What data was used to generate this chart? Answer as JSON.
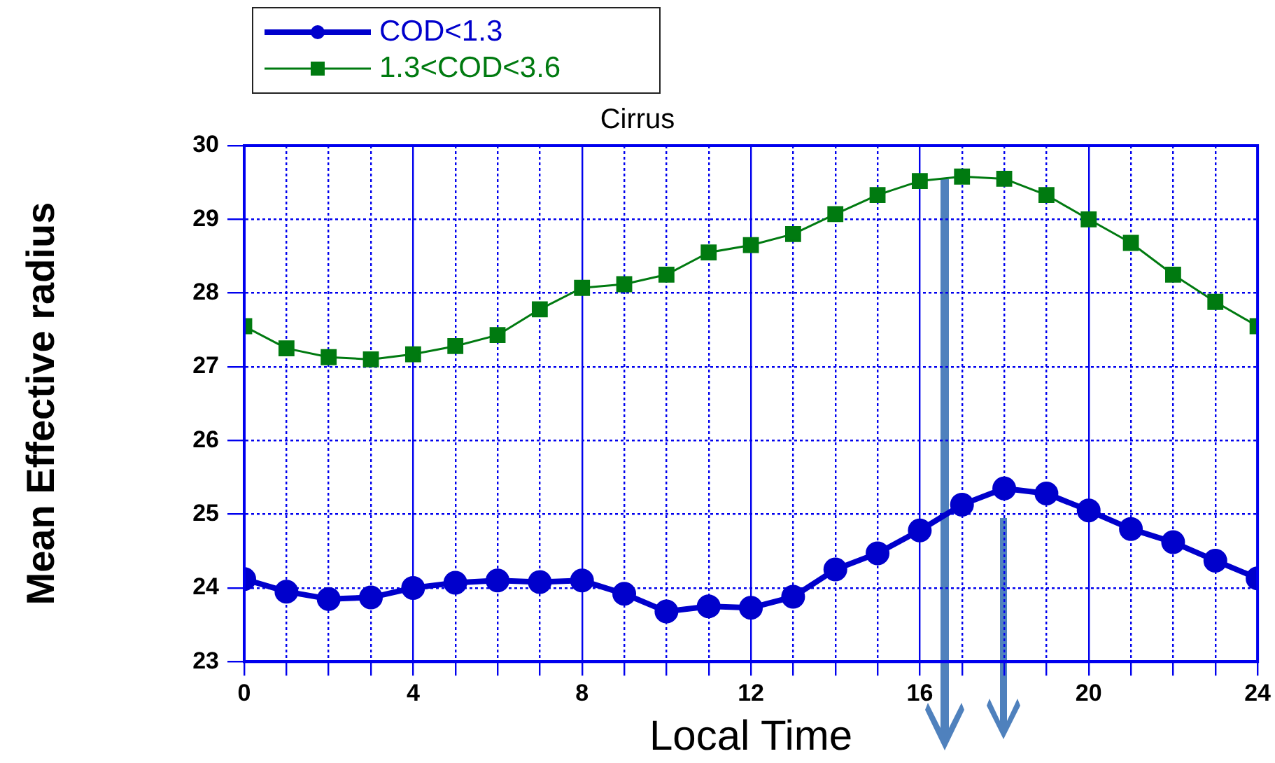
{
  "chart_data": {
    "type": "line",
    "title": "Cirrus",
    "xlabel": "Local Time",
    "ylabel": "Mean Effective radius",
    "x": [
      0,
      1,
      2,
      3,
      4,
      5,
      6,
      7,
      8,
      9,
      10,
      11,
      12,
      13,
      14,
      15,
      16,
      17,
      18,
      19,
      20,
      21,
      22,
      23,
      24
    ],
    "series": [
      {
        "name": "COD<1.3",
        "color": "#0000cc",
        "marker": "circle",
        "values": [
          24.12,
          23.95,
          23.85,
          23.87,
          24.0,
          24.07,
          24.1,
          24.08,
          24.1,
          23.92,
          23.68,
          23.75,
          23.73,
          23.88,
          24.25,
          24.47,
          24.78,
          25.13,
          25.35,
          25.28,
          25.05,
          24.8,
          24.62,
          24.37,
          24.13
        ]
      },
      {
        "name": "1.3<COD<3.6",
        "color": "#007a10",
        "marker": "square",
        "values": [
          27.55,
          27.25,
          27.13,
          27.1,
          27.17,
          27.28,
          27.43,
          27.78,
          28.07,
          28.12,
          28.25,
          28.55,
          28.65,
          28.8,
          29.07,
          29.33,
          29.52,
          29.58,
          29.55,
          29.33,
          29.0,
          28.68,
          28.25,
          27.88,
          27.55
        ]
      }
    ],
    "xlim": [
      0,
      24
    ],
    "xticks": [
      0,
      {
        "value": 1,
        "label": null
      },
      {
        "value": 2,
        "label": null
      },
      {
        "value": 3,
        "label": null
      },
      4,
      {
        "value": 5,
        "label": null
      },
      {
        "value": 6,
        "label": null
      },
      {
        "value": 7,
        "label": null
      },
      8,
      {
        "value": 9,
        "label": null
      },
      {
        "value": 10,
        "label": null
      },
      {
        "value": 11,
        "label": null
      },
      12,
      {
        "value": 13,
        "label": null
      },
      {
        "value": 14,
        "label": null
      },
      {
        "value": 15,
        "label": null
      },
      16,
      {
        "value": 17,
        "label": null
      },
      {
        "value": 18,
        "label": null
      },
      {
        "value": 19,
        "label": null
      },
      20,
      {
        "value": 21,
        "label": null
      },
      {
        "value": 22,
        "label": null
      },
      {
        "value": 23,
        "label": null
      },
      24
    ],
    "ylim": [
      23,
      30
    ],
    "yticks": [
      23,
      24,
      25,
      26,
      27,
      28,
      29,
      30
    ],
    "grid": true,
    "legend": "top left",
    "line_style": "solid"
  }
}
